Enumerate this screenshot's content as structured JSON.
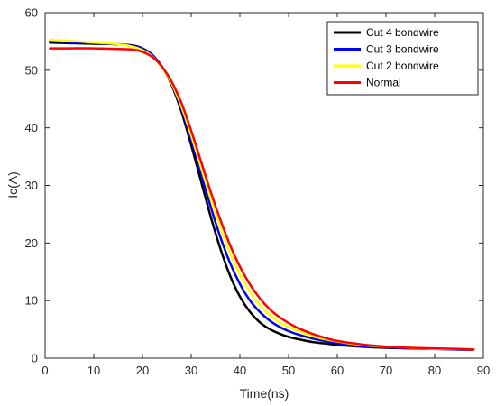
{
  "chart_data": {
    "type": "line",
    "title": "",
    "xlabel": "Time(ns)",
    "ylabel": "Ic(A)",
    "xlim": [
      0,
      90
    ],
    "ylim": [
      0,
      60
    ],
    "xticks": [
      0,
      10,
      20,
      30,
      40,
      50,
      60,
      70,
      80,
      90
    ],
    "yticks": [
      0,
      10,
      20,
      30,
      40,
      50,
      60
    ],
    "grid": false,
    "legend_position": "top-right",
    "series": [
      {
        "name": "Cut 4 bondwire",
        "color": "#000000",
        "x": [
          1,
          5,
          10,
          15,
          18,
          20,
          22,
          24,
          26,
          28,
          30,
          32,
          34,
          36,
          38,
          40,
          42,
          44,
          46,
          48,
          50,
          52,
          55,
          58,
          60,
          65,
          70,
          75,
          80,
          85,
          88
        ],
        "y": [
          54.8,
          54.7,
          54.6,
          54.5,
          54.3,
          53.8,
          52.7,
          50.6,
          47.4,
          42.8,
          37.0,
          30.8,
          24.6,
          19.0,
          14.3,
          10.7,
          8.1,
          6.3,
          5.1,
          4.3,
          3.7,
          3.3,
          2.8,
          2.5,
          2.3,
          2.0,
          1.8,
          1.7,
          1.6,
          1.5,
          1.5
        ]
      },
      {
        "name": "Cut 3 bondwire",
        "color": "#0000ff",
        "x": [
          1,
          5,
          10,
          15,
          18,
          20,
          22,
          24,
          26,
          28,
          30,
          32,
          34,
          36,
          38,
          40,
          42,
          44,
          46,
          48,
          50,
          52,
          55,
          58,
          60,
          65,
          70,
          75,
          80,
          85,
          88
        ],
        "y": [
          55.0,
          54.9,
          54.7,
          54.5,
          54.2,
          53.7,
          52.6,
          50.6,
          47.6,
          43.3,
          37.9,
          32.1,
          26.3,
          21.0,
          16.5,
          12.9,
          10.1,
          8.1,
          6.6,
          5.5,
          4.7,
          4.1,
          3.4,
          2.9,
          2.6,
          2.1,
          1.9,
          1.7,
          1.6,
          1.5,
          1.5
        ]
      },
      {
        "name": "Cut 2 bondwire",
        "color": "#ffff00",
        "x": [
          1,
          5,
          10,
          15,
          18,
          20,
          22,
          24,
          26,
          28,
          30,
          32,
          34,
          36,
          38,
          40,
          42,
          44,
          46,
          48,
          50,
          52,
          55,
          58,
          60,
          65,
          70,
          75,
          80,
          85,
          88
        ],
        "y": [
          55.3,
          55.1,
          54.8,
          54.5,
          54.1,
          53.5,
          52.4,
          50.5,
          47.7,
          43.7,
          38.7,
          33.2,
          27.7,
          22.6,
          18.2,
          14.5,
          11.6,
          9.3,
          7.6,
          6.3,
          5.4,
          4.7,
          3.8,
          3.2,
          2.9,
          2.3,
          2.0,
          1.8,
          1.6,
          1.6,
          1.5
        ]
      },
      {
        "name": "Normal",
        "color": "#ff0000",
        "x": [
          1,
          5,
          10,
          15,
          18,
          20,
          22,
          24,
          26,
          28,
          30,
          32,
          34,
          36,
          38,
          40,
          42,
          44,
          46,
          48,
          50,
          52,
          55,
          58,
          60,
          65,
          70,
          75,
          80,
          85,
          88
        ],
        "y": [
          53.8,
          53.8,
          53.8,
          53.7,
          53.6,
          53.2,
          52.3,
          50.6,
          48.0,
          44.3,
          39.5,
          34.2,
          28.9,
          24.0,
          19.6,
          15.9,
          12.9,
          10.5,
          8.6,
          7.2,
          6.1,
          5.2,
          4.2,
          3.4,
          3.0,
          2.4,
          2.0,
          1.8,
          1.7,
          1.6,
          1.5
        ]
      }
    ]
  }
}
